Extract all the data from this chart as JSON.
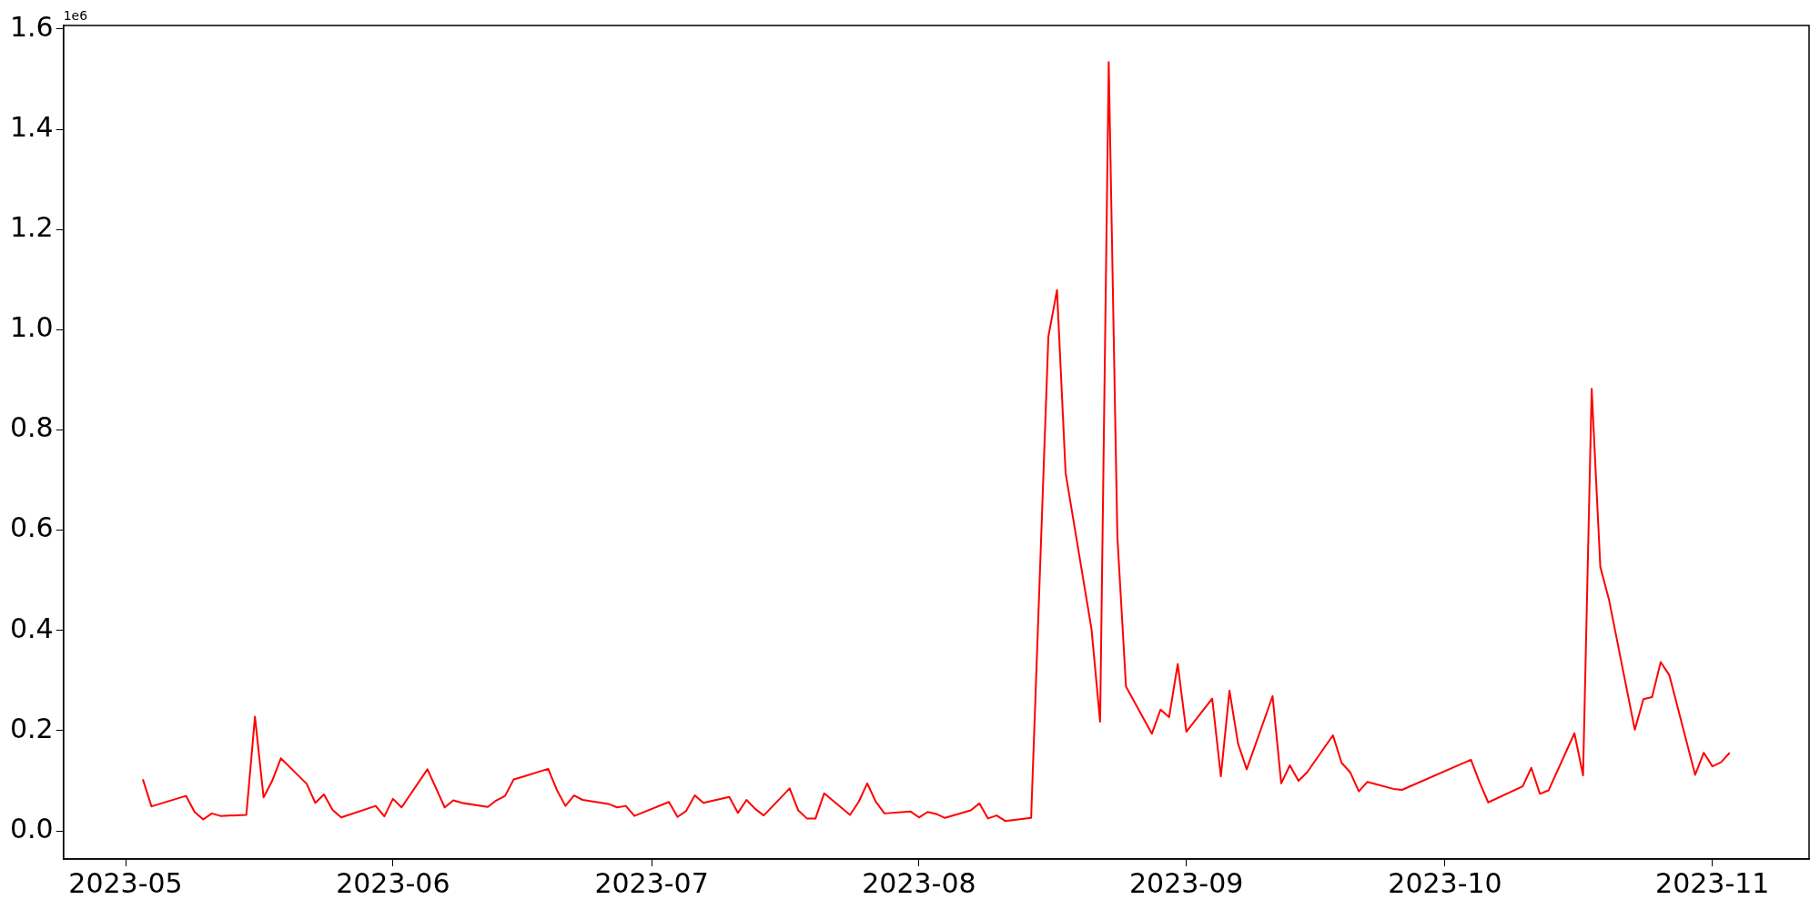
{
  "chart_data": {
    "type": "line",
    "x": [
      "2023-05-03",
      "2023-05-04",
      "2023-05-08",
      "2023-05-09",
      "2023-05-10",
      "2023-05-11",
      "2023-05-12",
      "2023-05-15",
      "2023-05-16",
      "2023-05-17",
      "2023-05-18",
      "2023-05-19",
      "2023-05-22",
      "2023-05-23",
      "2023-05-24",
      "2023-05-25",
      "2023-05-26",
      "2023-05-30",
      "2023-05-31",
      "2023-06-01",
      "2023-06-02",
      "2023-06-05",
      "2023-06-07",
      "2023-06-08",
      "2023-06-09",
      "2023-06-12",
      "2023-06-13",
      "2023-06-14",
      "2023-06-15",
      "2023-06-16",
      "2023-06-19",
      "2023-06-20",
      "2023-06-21",
      "2023-06-22",
      "2023-06-23",
      "2023-06-26",
      "2023-06-27",
      "2023-06-28",
      "2023-06-29",
      "2023-07-03",
      "2023-07-04",
      "2023-07-05",
      "2023-07-06",
      "2023-07-07",
      "2023-07-10",
      "2023-07-11",
      "2023-07-12",
      "2023-07-13",
      "2023-07-14",
      "2023-07-17",
      "2023-07-18",
      "2023-07-19",
      "2023-07-20",
      "2023-07-21",
      "2023-07-24",
      "2023-07-25",
      "2023-07-26",
      "2023-07-27",
      "2023-07-28",
      "2023-07-31",
      "2023-08-01",
      "2023-08-02",
      "2023-08-03",
      "2023-08-04",
      "2023-08-07",
      "2023-08-08",
      "2023-08-09",
      "2023-08-10",
      "2023-08-11",
      "2023-08-14",
      "2023-08-16",
      "2023-08-17",
      "2023-08-18",
      "2023-08-21",
      "2023-08-22",
      "2023-08-23",
      "2023-08-24",
      "2023-08-25",
      "2023-08-28",
      "2023-08-29",
      "2023-08-30",
      "2023-08-31",
      "2023-09-01",
      "2023-09-04",
      "2023-09-05",
      "2023-09-06",
      "2023-09-07",
      "2023-09-08",
      "2023-09-11",
      "2023-09-12",
      "2023-09-13",
      "2023-09-14",
      "2023-09-15",
      "2023-09-18",
      "2023-09-19",
      "2023-09-20",
      "2023-09-21",
      "2023-09-22",
      "2023-09-25",
      "2023-09-26",
      "2023-10-04",
      "2023-10-05",
      "2023-10-06",
      "2023-10-10",
      "2023-10-11",
      "2023-10-12",
      "2023-10-13",
      "2023-10-16",
      "2023-10-17",
      "2023-10-18",
      "2023-10-19",
      "2023-10-20",
      "2023-10-23",
      "2023-10-24",
      "2023-10-25",
      "2023-10-26",
      "2023-10-27",
      "2023-10-30",
      "2023-10-31",
      "2023-11-01",
      "2023-11-02",
      "2023-11-03"
    ],
    "series": [
      {
        "color": "#ff0000",
        "values": [
          0.103,
          0.049,
          0.07,
          0.038,
          0.023,
          0.035,
          0.03,
          0.032,
          0.228,
          0.067,
          0.1,
          0.145,
          0.094,
          0.056,
          0.073,
          0.042,
          0.027,
          0.05,
          0.029,
          0.064,
          0.047,
          0.123,
          0.047,
          0.061,
          0.056,
          0.048,
          0.061,
          0.07,
          0.103,
          0.108,
          0.124,
          0.082,
          0.05,
          0.071,
          0.062,
          0.054,
          0.047,
          0.05,
          0.03,
          0.058,
          0.028,
          0.04,
          0.071,
          0.056,
          0.068,
          0.036,
          0.062,
          0.044,
          0.031,
          0.085,
          0.041,
          0.025,
          0.025,
          0.075,
          0.032,
          0.058,
          0.095,
          0.058,
          0.035,
          0.039,
          0.027,
          0.038,
          0.034,
          0.026,
          0.041,
          0.055,
          0.025,
          0.031,
          0.02,
          0.026,
          0.986,
          1.079,
          0.714,
          0.403,
          0.218,
          1.534,
          0.587,
          0.288,
          0.194,
          0.242,
          0.227,
          0.333,
          0.198,
          0.264,
          0.109,
          0.28,
          0.174,
          0.123,
          0.269,
          0.095,
          0.131,
          0.1,
          0.117,
          0.191,
          0.136,
          0.117,
          0.079,
          0.098,
          0.084,
          0.082,
          0.142,
          0.097,
          0.057,
          0.089,
          0.126,
          0.074,
          0.081,
          0.195,
          0.111,
          0.882,
          0.527,
          0.462,
          0.202,
          0.263,
          0.267,
          0.337,
          0.311,
          0.112,
          0.156,
          0.129,
          0.137,
          0.156
        ]
      }
    ],
    "xlim": [
      "2023-04-23T19:00",
      "2023-11-12T05:00"
    ],
    "xticks": [
      "2023-05",
      "2023-06",
      "2023-07",
      "2023-08",
      "2023-09",
      "2023-10",
      "2023-11"
    ],
    "ylim": [
      -0.056,
      1.607
    ],
    "yticks": [
      {
        "value": 0,
        "label": "0.0"
      },
      0.2,
      0.4,
      0.6,
      0.8,
      {
        "value": 1,
        "label": "1.0"
      },
      1.2,
      1.4,
      1.6
    ],
    "annotations": [
      "1e6"
    ],
    "grid": false,
    "legend": false,
    "marker": "none",
    "line_style": "solid"
  }
}
